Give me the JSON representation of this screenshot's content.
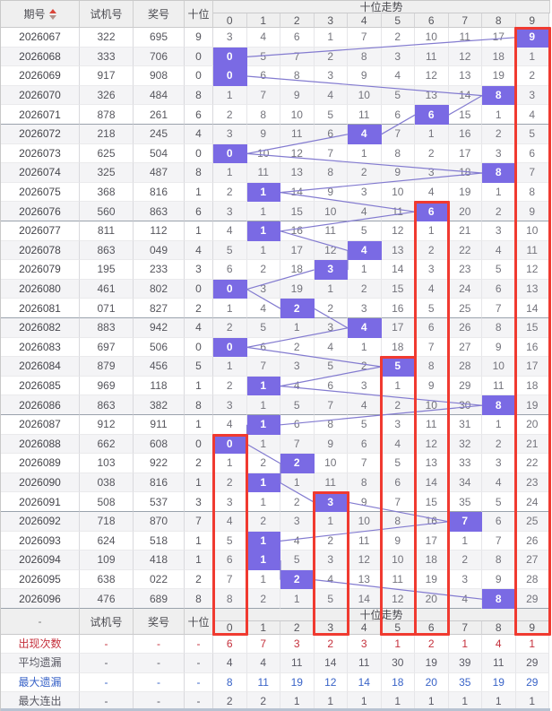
{
  "header": {
    "period_label": "期号",
    "test_label": "试机号",
    "prize_label": "奖号",
    "digit_label": "十位",
    "trend_label": "十位走势",
    "sort_icon": "sort-asc-desc-arrows"
  },
  "footer_header": {
    "dash": "-",
    "test_label": "试机号",
    "prize_label": "奖号",
    "digit_label": "十位",
    "trend_label": "十位走势"
  },
  "colors": {
    "highlight_purple": "#7a6ae4",
    "trend_line": "#837bd0",
    "red_box": "#f03a30",
    "stat_red": "#c5303c",
    "stat_blue": "#3a64c8",
    "stat_dark": "#5a5a64",
    "header_bg": "#efefef"
  },
  "chart_data": {
    "type": "table",
    "title": "十位走势",
    "trend_digits": [
      "0",
      "1",
      "2",
      "3",
      "4",
      "5",
      "6",
      "7",
      "8",
      "9"
    ],
    "rows": [
      {
        "period": "2026067",
        "test": "322",
        "prize": "695",
        "digit": 9,
        "miss": [
          3,
          4,
          6,
          1,
          7,
          2,
          10,
          11,
          17,
          9
        ]
      },
      {
        "period": "2026068",
        "test": "333",
        "prize": "706",
        "digit": 0,
        "miss": [
          0,
          5,
          7,
          2,
          8,
          3,
          11,
          12,
          18,
          1
        ]
      },
      {
        "period": "2026069",
        "test": "917",
        "prize": "908",
        "digit": 0,
        "miss": [
          0,
          6,
          8,
          3,
          9,
          4,
          12,
          13,
          19,
          2
        ]
      },
      {
        "period": "2026070",
        "test": "326",
        "prize": "484",
        "digit": 8,
        "miss": [
          1,
          7,
          9,
          4,
          10,
          5,
          13,
          14,
          8,
          3
        ]
      },
      {
        "period": "2026071",
        "test": "878",
        "prize": "261",
        "digit": 6,
        "miss": [
          2,
          8,
          10,
          5,
          11,
          6,
          6,
          15,
          1,
          4
        ]
      },
      {
        "period": "2026072",
        "test": "218",
        "prize": "245",
        "digit": 4,
        "miss": [
          3,
          9,
          11,
          6,
          4,
          7,
          1,
          16,
          2,
          5
        ]
      },
      {
        "period": "2026073",
        "test": "625",
        "prize": "504",
        "digit": 0,
        "miss": [
          0,
          10,
          12,
          7,
          1,
          8,
          2,
          17,
          3,
          6
        ]
      },
      {
        "period": "2026074",
        "test": "325",
        "prize": "487",
        "digit": 8,
        "miss": [
          1,
          11,
          13,
          8,
          2,
          9,
          3,
          18,
          8,
          7
        ]
      },
      {
        "period": "2026075",
        "test": "368",
        "prize": "816",
        "digit": 1,
        "miss": [
          2,
          1,
          14,
          9,
          3,
          10,
          4,
          19,
          1,
          8
        ]
      },
      {
        "period": "2026076",
        "test": "560",
        "prize": "863",
        "digit": 6,
        "miss": [
          3,
          1,
          15,
          10,
          4,
          11,
          6,
          20,
          2,
          9
        ]
      },
      {
        "period": "2026077",
        "test": "811",
        "prize": "112",
        "digit": 1,
        "miss": [
          4,
          1,
          16,
          11,
          5,
          12,
          1,
          21,
          3,
          10
        ]
      },
      {
        "period": "2026078",
        "test": "863",
        "prize": "049",
        "digit": 4,
        "miss": [
          5,
          1,
          17,
          12,
          4,
          13,
          2,
          22,
          4,
          11
        ]
      },
      {
        "period": "2026079",
        "test": "195",
        "prize": "233",
        "digit": 3,
        "miss": [
          6,
          2,
          18,
          3,
          1,
          14,
          3,
          23,
          5,
          12
        ]
      },
      {
        "period": "2026080",
        "test": "461",
        "prize": "802",
        "digit": 0,
        "miss": [
          0,
          3,
          19,
          1,
          2,
          15,
          4,
          24,
          6,
          13
        ]
      },
      {
        "period": "2026081",
        "test": "071",
        "prize": "827",
        "digit": 2,
        "miss": [
          1,
          4,
          2,
          2,
          3,
          16,
          5,
          25,
          7,
          14
        ]
      },
      {
        "period": "2026082",
        "test": "883",
        "prize": "942",
        "digit": 4,
        "miss": [
          2,
          5,
          1,
          3,
          4,
          17,
          6,
          26,
          8,
          15
        ]
      },
      {
        "period": "2026083",
        "test": "697",
        "prize": "506",
        "digit": 0,
        "miss": [
          0,
          6,
          2,
          4,
          1,
          18,
          7,
          27,
          9,
          16
        ]
      },
      {
        "period": "2026084",
        "test": "879",
        "prize": "456",
        "digit": 5,
        "miss": [
          1,
          7,
          3,
          5,
          2,
          5,
          8,
          28,
          10,
          17
        ]
      },
      {
        "period": "2026085",
        "test": "969",
        "prize": "118",
        "digit": 1,
        "miss": [
          2,
          1,
          4,
          6,
          3,
          1,
          9,
          29,
          11,
          18
        ]
      },
      {
        "period": "2026086",
        "test": "863",
        "prize": "382",
        "digit": 8,
        "miss": [
          3,
          1,
          5,
          7,
          4,
          2,
          10,
          30,
          8,
          19
        ]
      },
      {
        "period": "2026087",
        "test": "912",
        "prize": "911",
        "digit": 1,
        "miss": [
          4,
          1,
          6,
          8,
          5,
          3,
          11,
          31,
          1,
          20
        ]
      },
      {
        "period": "2026088",
        "test": "662",
        "prize": "608",
        "digit": 0,
        "miss": [
          0,
          1,
          7,
          9,
          6,
          4,
          12,
          32,
          2,
          21
        ]
      },
      {
        "period": "2026089",
        "test": "103",
        "prize": "922",
        "digit": 2,
        "miss": [
          1,
          2,
          2,
          10,
          7,
          5,
          13,
          33,
          3,
          22
        ]
      },
      {
        "period": "2026090",
        "test": "038",
        "prize": "816",
        "digit": 1,
        "miss": [
          2,
          1,
          1,
          11,
          8,
          6,
          14,
          34,
          4,
          23
        ]
      },
      {
        "period": "2026091",
        "test": "508",
        "prize": "537",
        "digit": 3,
        "miss": [
          3,
          1,
          2,
          3,
          9,
          7,
          15,
          35,
          5,
          24
        ]
      },
      {
        "period": "2026092",
        "test": "718",
        "prize": "870",
        "digit": 7,
        "miss": [
          4,
          2,
          3,
          1,
          10,
          8,
          16,
          7,
          6,
          25
        ]
      },
      {
        "period": "2026093",
        "test": "624",
        "prize": "518",
        "digit": 1,
        "miss": [
          5,
          1,
          4,
          2,
          11,
          9,
          17,
          1,
          7,
          26
        ]
      },
      {
        "period": "2026094",
        "test": "109",
        "prize": "418",
        "digit": 1,
        "miss": [
          6,
          1,
          5,
          3,
          12,
          10,
          18,
          2,
          8,
          27
        ]
      },
      {
        "period": "2026095",
        "test": "638",
        "prize": "022",
        "digit": 2,
        "miss": [
          7,
          1,
          2,
          4,
          13,
          11,
          19,
          3,
          9,
          28
        ]
      },
      {
        "period": "2026096",
        "test": "476",
        "prize": "689",
        "digit": 8,
        "miss": [
          8,
          2,
          1,
          5,
          14,
          12,
          20,
          4,
          8,
          29
        ]
      }
    ],
    "stats": [
      {
        "label": "出现次数",
        "color_key": "red",
        "values": [
          6,
          7,
          3,
          2,
          3,
          1,
          2,
          1,
          4,
          1
        ]
      },
      {
        "label": "平均遗漏",
        "color_key": "dark",
        "values": [
          4,
          4,
          11,
          14,
          11,
          30,
          19,
          39,
          11,
          29
        ]
      },
      {
        "label": "最大遗漏",
        "color_key": "blue",
        "values": [
          8,
          11,
          19,
          12,
          14,
          18,
          20,
          35,
          19,
          29
        ]
      },
      {
        "label": "最大连出",
        "color_key": "dark",
        "values": [
          2,
          2,
          1,
          1,
          1,
          1,
          1,
          1,
          1,
          1
        ]
      }
    ],
    "red_boxes": [
      {
        "col": 9,
        "from_row": 0
      },
      {
        "col": 6,
        "from_row": 9
      },
      {
        "col": 5,
        "from_row": 17
      },
      {
        "col": 0,
        "from_row": 21
      },
      {
        "col": 3,
        "from_row": 24
      }
    ]
  }
}
